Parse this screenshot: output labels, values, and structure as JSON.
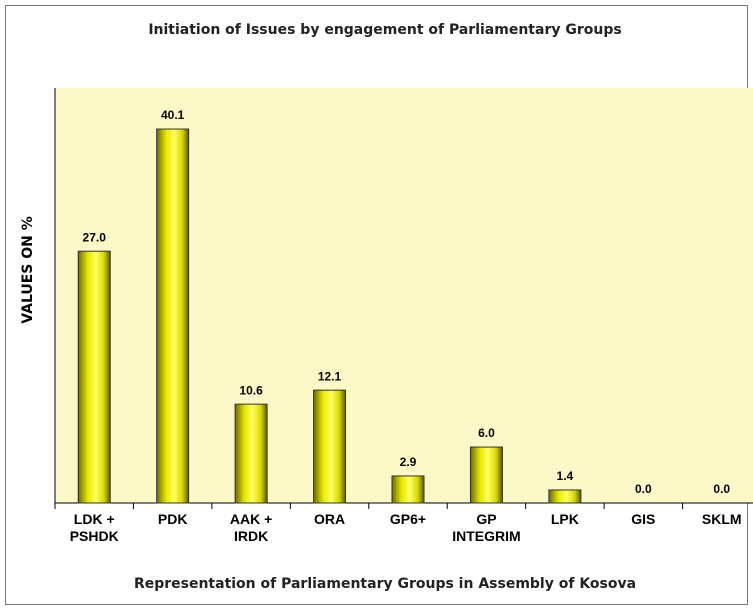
{
  "chart_data": {
    "type": "bar",
    "title": "Initiation of Issues by engagement of Parliamentary Groups",
    "y_label": "VALUES ON %",
    "x_label": "Representation of Parliamentary Groups in Assembly of Kosova",
    "categories": [
      "LDK + PSHDK",
      "PDK",
      "AAK + IRDK",
      "ORA",
      "GP6+",
      "GP INTEGRIM",
      "LPK",
      "GIS",
      "SKLM"
    ],
    "values": [
      27.0,
      40.1,
      10.6,
      12.1,
      2.9,
      6.0,
      1.4,
      0.0,
      0.0
    ],
    "value_labels": [
      "27.0",
      "40.1",
      "10.6",
      "12.1",
      "2.9",
      "6.0",
      "1.4",
      "0.0",
      "0.0"
    ],
    "color": "#e8e800",
    "ylim": [
      0,
      44.5
    ]
  }
}
